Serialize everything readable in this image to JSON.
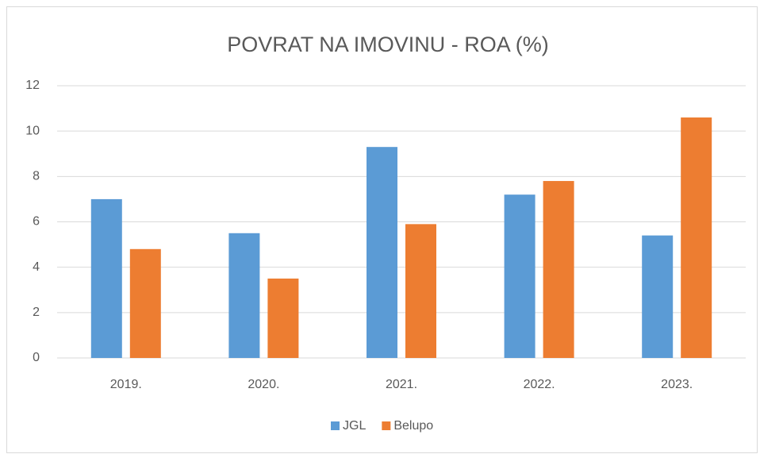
{
  "chart_data": {
    "type": "bar",
    "title": "POVRAT NA IMOVINU - ROA (%)",
    "categories": [
      "2019.",
      "2020.",
      "2021.",
      "2022.",
      "2023."
    ],
    "series": [
      {
        "name": "JGL",
        "color": "#5b9bd5",
        "values": [
          7.0,
          5.5,
          9.3,
          7.2,
          5.4
        ]
      },
      {
        "name": "Belupo",
        "color": "#ed7d31",
        "values": [
          4.8,
          3.5,
          5.9,
          7.8,
          10.6
        ]
      }
    ],
    "ylim": [
      0,
      12
    ],
    "yticks": [
      0,
      2,
      4,
      6,
      8,
      10,
      12
    ],
    "grid": true,
    "legend": "bottom"
  }
}
